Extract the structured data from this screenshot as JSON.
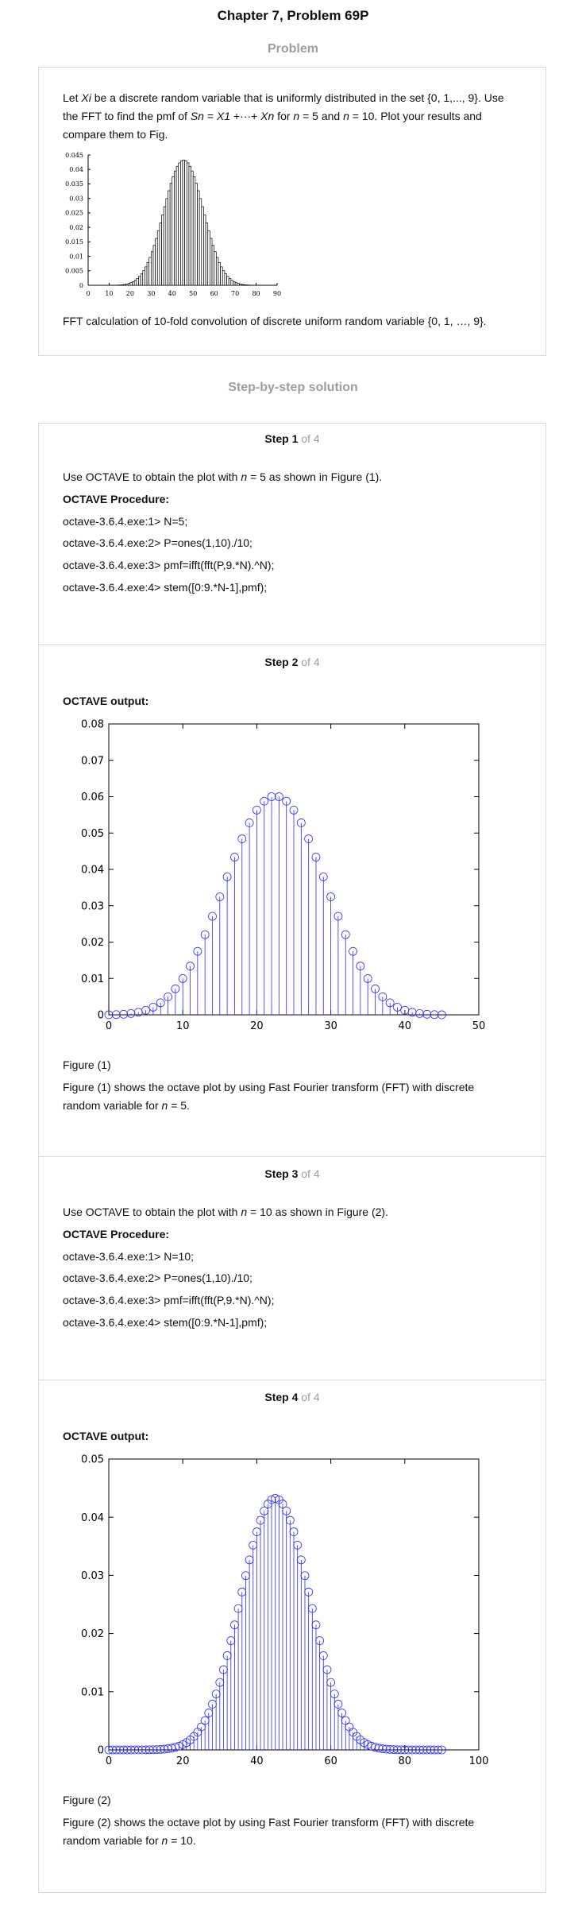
{
  "page_title": "Chapter 7, Problem 69P",
  "problem_heading": "Problem",
  "problem": {
    "line1_before": "Let ",
    "line1_var": "Xi",
    "line1_after": " be a discrete random variable that is uniformly distributed in the set {0, 1,..., 9}. Use",
    "line2_before": "the FFT to find the pmf of ",
    "line2_sn": "Sn",
    "line2_eq": " = ",
    "line2_x1": "X1",
    "line2_dots": " +···+ ",
    "line2_xn": "Xn",
    "line2_for": " for ",
    "line2_n1": "n",
    "line2_mid": " = 5 and ",
    "line2_n2": "n",
    "line2_end": " = 10. Plot your results and",
    "line3": "compare them to Fig.",
    "figure_caption": "FFT calculation of 10-fold convolution of discrete uniform random variable {0, 1, …, 9}."
  },
  "solution_heading": "Step-by-step solution",
  "steps": [
    {
      "title_bold": "Step 1",
      "title_of": " of 4",
      "intro_before": "Use OCTAVE to obtain the plot with ",
      "intro_n": "n",
      "intro_after": " = 5 as shown in Figure (1).",
      "procedure_label": "OCTAVE Procedure:",
      "code": [
        "octave-3.6.4.exe:1> N=5;",
        "octave-3.6.4.exe:2> P=ones(1,10)./10;",
        "octave-3.6.4.exe:3> pmf=ifft(fft(P,9.*N).^N);",
        "octave-3.6.4.exe:4> stem([0:9.*N-1],pmf);"
      ]
    },
    {
      "title_bold": "Step 2",
      "title_of": " of 4",
      "output_label": "OCTAVE output:",
      "figure_label": "Figure (1)",
      "desc_line1": "Figure (1) shows the octave plot by using Fast Fourier transform (FFT) with discrete",
      "desc_line2_before": "random variable for ",
      "desc_line2_n": "n",
      "desc_line2_after": " = 5."
    },
    {
      "title_bold": "Step 3",
      "title_of": " of 4",
      "intro_before": "Use OCTAVE to obtain the plot with ",
      "intro_n": "n",
      "intro_after": " = 10 as shown in Figure (2).",
      "procedure_label": "OCTAVE Procedure:",
      "code": [
        "octave-3.6.4.exe:1> N=10;",
        "octave-3.6.4.exe:2> P=ones(1,10)./10;",
        "octave-3.6.4.exe:3> pmf=ifft(fft(P,9.*N).^N);",
        "octave-3.6.4.exe:4> stem([0:9.*N-1],pmf);"
      ]
    },
    {
      "title_bold": "Step 4",
      "title_of": " of 4",
      "output_label": "OCTAVE output:",
      "figure_label": "Figure (2)",
      "desc_line1": "Figure (2) shows the octave plot by using Fast Fourier transform (FFT) with discrete",
      "desc_line2_before": "random variable for ",
      "desc_line2_n": "n",
      "desc_line2_after": " = 10."
    }
  ],
  "colors": {
    "stem_blue": "#2b2bff",
    "heading_gray": "#9e9e9e",
    "border_gray": "#dcdcdc"
  },
  "chart_data": [
    {
      "type": "bar",
      "description_ref": "problem figure: pmf of 10-fold convolution (histogram bars)",
      "n": 10,
      "x_range": [
        0,
        90
      ],
      "ylim": [
        0,
        0.045
      ],
      "x_ticks": [
        "0",
        "10",
        "20",
        "30",
        "40",
        "50",
        "60",
        "70",
        "80",
        "90"
      ],
      "y_ticks": [
        "0",
        "0.005",
        "0.01",
        "0.015",
        "0.02",
        "0.025",
        "0.03",
        "0.035",
        "0.04",
        "0.045"
      ],
      "values_note": "pmf of sum of 10 iid uniform {0..9}, peak ≈0.0433 at x=45"
    },
    {
      "type": "scatter",
      "style": "stem",
      "n": 5,
      "x_range": [
        0,
        50
      ],
      "ylim": [
        0,
        0.08
      ],
      "x_ticks": [
        "0",
        "10",
        "20",
        "30",
        "40",
        "50"
      ],
      "y_ticks": [
        "0",
        "0.01",
        "0.02",
        "0.03",
        "0.04",
        "0.05",
        "0.06",
        "0.07",
        "0.08"
      ],
      "values_note": "pmf of sum of 5 iid uniform {0..9}, x = 0..44, peak ≈0.0598 at x=22,23"
    },
    {
      "type": "scatter",
      "style": "stem",
      "n": 10,
      "x_range": [
        0,
        100
      ],
      "ylim": [
        0,
        0.05
      ],
      "x_ticks": [
        "0",
        "20",
        "40",
        "60",
        "80",
        "100"
      ],
      "y_ticks": [
        "0",
        "0.01",
        "0.02",
        "0.03",
        "0.04",
        "0.05"
      ],
      "values_note": "pmf of sum of 10 iid uniform {0..9}, x = 0..89, peak ≈0.0433 at x=45"
    }
  ]
}
